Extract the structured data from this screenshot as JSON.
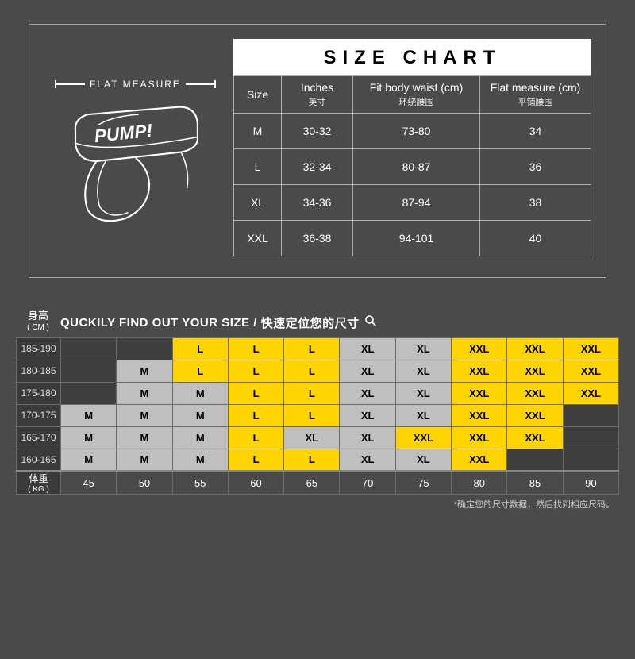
{
  "colors": {
    "page_bg": "#4a4a4a",
    "panel_border": "rgba(255,255,255,0.5)",
    "table_border": "rgba(255,255,255,0.55)",
    "title_bg": "#ffffff",
    "title_fg": "#000000",
    "grid_border": "#6b6b6b",
    "m_bg": "#bfbfbf",
    "l_bg": "#ffd400",
    "xl_bg": "#bfbfbf",
    "xxl_bg": "#ffd400",
    "empty_bg": "#3f3f3f",
    "header_cell_bg": "#3a3a3a",
    "text": "#ffffff"
  },
  "flat_measure_label": "FLAT  MEASURE",
  "brand": "PUMP!",
  "size_chart": {
    "title": "SIZE CHART",
    "columns": [
      {
        "en": "Size",
        "cn": ""
      },
      {
        "en": "Inches",
        "cn": "英寸"
      },
      {
        "en": "Fit body waist (cm)",
        "cn": "环绕腰围"
      },
      {
        "en": "Flat measure (cm)",
        "cn": "平铺腰围"
      }
    ],
    "rows": [
      {
        "size": "M",
        "inches": "30-32",
        "waist": "73-80",
        "flat": "34"
      },
      {
        "size": "L",
        "inches": "32-34",
        "waist": "80-87",
        "flat": "36"
      },
      {
        "size": "XL",
        "inches": "34-36",
        "waist": "87-94",
        "flat": "38"
      },
      {
        "size": "XXL",
        "inches": "36-38",
        "waist": "94-101",
        "flat": "40"
      }
    ]
  },
  "finder": {
    "height_label": "身高",
    "height_unit": "( CM )",
    "weight_label": "体重",
    "weight_unit": "( KG )",
    "title_en": "QUCKILY FIND OUT YOUR SIZE",
    "title_cn": "快速定位您的尺寸",
    "footnote": "*确定您的尺寸数据，然后找到相应尺码。",
    "heights": [
      "185-190",
      "180-185",
      "175-180",
      "170-175",
      "165-170",
      "160-165"
    ],
    "weights": [
      "45",
      "50",
      "55",
      "60",
      "65",
      "70",
      "75",
      "80",
      "85",
      "90"
    ],
    "cells": [
      [
        "",
        "",
        "L",
        "L",
        "L",
        "XL",
        "XL",
        "XXL",
        "XXL",
        "XXL"
      ],
      [
        "",
        "M",
        "L",
        "L",
        "L",
        "XL",
        "XL",
        "XXL",
        "XXL",
        "XXL"
      ],
      [
        "",
        "M",
        "M",
        "L",
        "L",
        "XL",
        "XL",
        "XXL",
        "XXL",
        "XXL"
      ],
      [
        "M",
        "M",
        "M",
        "L",
        "L",
        "XL",
        "XL",
        "XXL",
        "XXL",
        ""
      ],
      [
        "M",
        "M",
        "M",
        "L",
        "XL",
        "XL",
        "XXL",
        "XXL",
        "XXL",
        ""
      ],
      [
        "M",
        "M",
        "M",
        "L",
        "L",
        "XL",
        "XL",
        "XXL",
        "",
        ""
      ]
    ]
  }
}
